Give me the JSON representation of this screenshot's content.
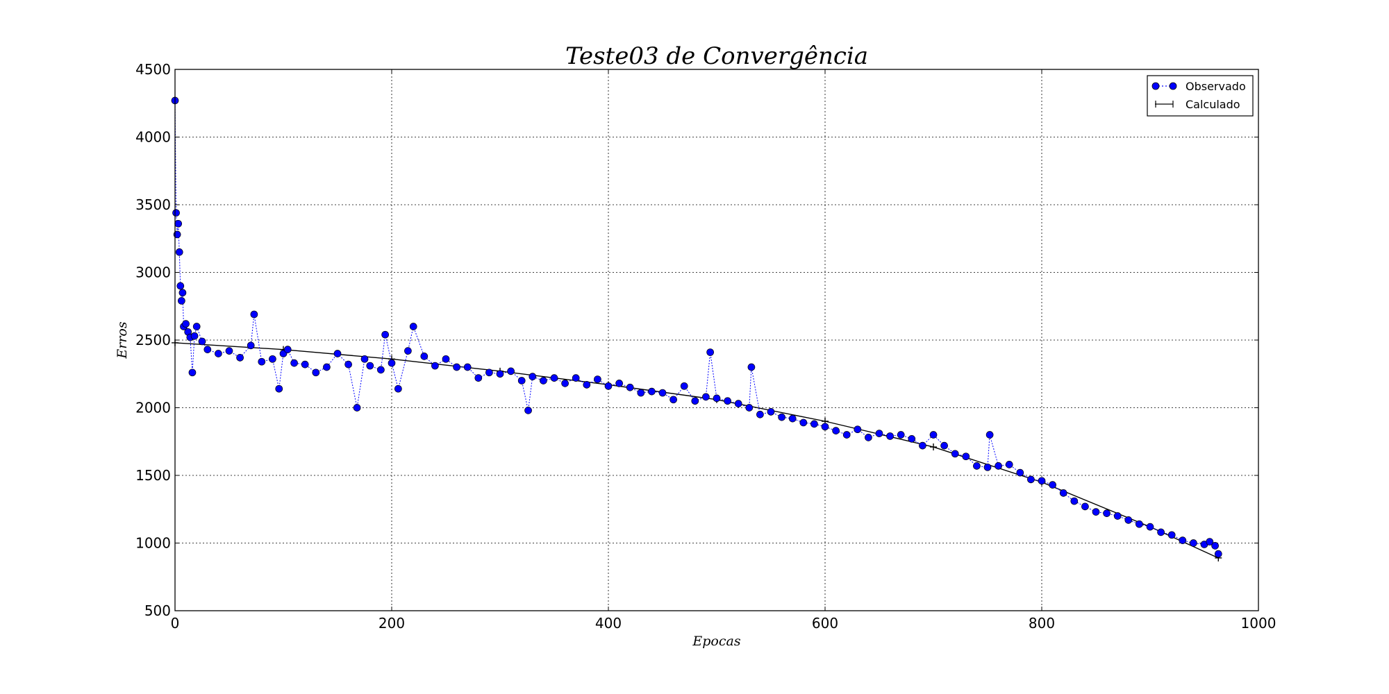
{
  "chart_data": {
    "type": "line",
    "title": "Teste03 de Convergência",
    "xlabel": "Epocas",
    "ylabel": "Erros",
    "xlim": [
      0,
      1000
    ],
    "ylim": [
      500,
      4500
    ],
    "xticks": [
      "0",
      "200",
      "400",
      "600",
      "800",
      "1000"
    ],
    "yticks": [
      "500",
      "1000",
      "1500",
      "2000",
      "2500",
      "3000",
      "3500",
      "4000",
      "4500"
    ],
    "grid": true,
    "legend_position": "top-right",
    "colors": {
      "observed": "#0000ff",
      "calculated": "#000000"
    },
    "series": [
      {
        "name": "Observado",
        "marker": "circle",
        "line": "dotted",
        "x": [
          0,
          1,
          2,
          3,
          4,
          5,
          6,
          7,
          8,
          10,
          12,
          14,
          16,
          18,
          20,
          25,
          30,
          40,
          50,
          60,
          70,
          73,
          80,
          90,
          96,
          100,
          104,
          110,
          120,
          130,
          140,
          150,
          160,
          168,
          175,
          180,
          190,
          194,
          200,
          206,
          215,
          220,
          230,
          240,
          250,
          260,
          270,
          280,
          290,
          300,
          310,
          320,
          326,
          330,
          340,
          350,
          360,
          370,
          380,
          390,
          400,
          410,
          420,
          430,
          440,
          450,
          460,
          470,
          480,
          490,
          494,
          500,
          510,
          520,
          530,
          532,
          540,
          550,
          560,
          570,
          580,
          590,
          600,
          610,
          620,
          630,
          640,
          650,
          660,
          670,
          680,
          690,
          700,
          710,
          720,
          730,
          740,
          750,
          752,
          760,
          770,
          780,
          790,
          800,
          810,
          820,
          830,
          840,
          850,
          860,
          870,
          880,
          890,
          900,
          910,
          920,
          930,
          940,
          950,
          955,
          960,
          963
        ],
        "values": [
          4270,
          3440,
          3280,
          3360,
          3150,
          2900,
          2790,
          2850,
          2600,
          2620,
          2560,
          2520,
          2260,
          2530,
          2600,
          2490,
          2430,
          2400,
          2420,
          2370,
          2460,
          2690,
          2340,
          2360,
          2140,
          2400,
          2430,
          2330,
          2320,
          2260,
          2300,
          2400,
          2320,
          2000,
          2360,
          2310,
          2280,
          2540,
          2330,
          2140,
          2420,
          2600,
          2380,
          2310,
          2360,
          2300,
          2300,
          2220,
          2260,
          2250,
          2270,
          2200,
          1980,
          2230,
          2200,
          2220,
          2180,
          2220,
          2170,
          2210,
          2160,
          2180,
          2150,
          2110,
          2120,
          2110,
          2060,
          2160,
          2050,
          2080,
          2410,
          2070,
          2050,
          2030,
          2000,
          2300,
          1950,
          1970,
          1930,
          1920,
          1890,
          1880,
          1860,
          1830,
          1800,
          1840,
          1780,
          1810,
          1790,
          1800,
          1770,
          1720,
          1800,
          1720,
          1660,
          1640,
          1570,
          1560,
          1800,
          1570,
          1580,
          1520,
          1470,
          1460,
          1430,
          1370,
          1310,
          1270,
          1230,
          1220,
          1200,
          1170,
          1140,
          1120,
          1080,
          1060,
          1020,
          1000,
          990,
          1010,
          980,
          920
        ]
      },
      {
        "name": "Calculado",
        "marker": "plus",
        "line": "solid",
        "x": [
          0,
          100,
          200,
          300,
          400,
          500,
          600,
          700,
          800,
          900,
          963
        ],
        "values": [
          2480,
          2430,
          2360,
          2270,
          2170,
          2060,
          1900,
          1710,
          1450,
          1120,
          890
        ]
      }
    ]
  }
}
